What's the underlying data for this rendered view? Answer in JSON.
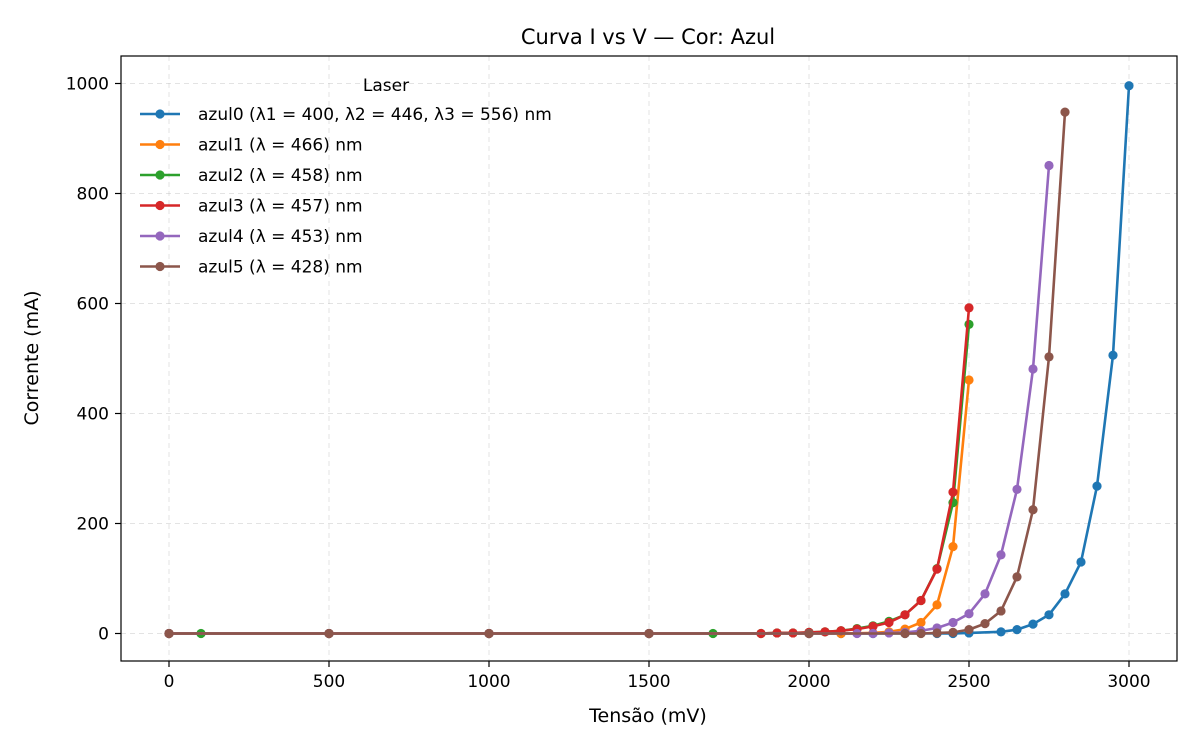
{
  "chart_data": {
    "type": "line",
    "title": "Curva I vs V — Cor: Azul",
    "xlabel": "Tensão (mV)",
    "ylabel": "Corrente (mA)",
    "xlim": [
      -150,
      3150
    ],
    "ylim": [
      -50,
      1050
    ],
    "xticks": [
      0,
      500,
      1000,
      1500,
      2000,
      2500,
      3000
    ],
    "yticks": [
      0,
      200,
      400,
      600,
      800,
      1000
    ],
    "grid": true,
    "legend": {
      "title": "Laser",
      "position": "upper-left"
    },
    "series": [
      {
        "name": "azul0 (λ1 = 400, λ2 = 446, λ3 = 556) nm",
        "color": "#1f77b4",
        "x": [
          0,
          500,
          1000,
          1500,
          2000,
          2100,
          2200,
          2300,
          2400,
          2450,
          2500,
          2600,
          2650,
          2700,
          2750,
          2800,
          2850,
          2900,
          2950,
          3000
        ],
        "y": [
          0,
          0,
          0,
          0,
          0,
          0,
          0,
          0,
          0,
          0,
          1,
          3,
          7,
          17,
          34,
          72,
          130,
          268,
          506,
          996
        ]
      },
      {
        "name": "azul1 (λ = 466) nm",
        "color": "#ff7f0e",
        "x": [
          0,
          500,
          1000,
          1500,
          2000,
          2100,
          2200,
          2250,
          2300,
          2350,
          2400,
          2450,
          2500
        ],
        "y": [
          0,
          0,
          0,
          0,
          0,
          0,
          1,
          3,
          8,
          20,
          52,
          158,
          461
        ]
      },
      {
        "name": "azul2 (λ = 458) nm",
        "color": "#2ca02c",
        "x": [
          0,
          100,
          500,
          1000,
          1500,
          1700,
          1850,
          1900,
          1950,
          2000,
          2050,
          2100,
          2150,
          2200,
          2250,
          2300,
          2350,
          2400,
          2450,
          2500
        ],
        "y": [
          0,
          0,
          0,
          0,
          0,
          0,
          0,
          1,
          1,
          2,
          3,
          5,
          9,
          14,
          22,
          34,
          60,
          118,
          238,
          562
        ]
      },
      {
        "name": "azul3 (λ = 457) nm",
        "color": "#d62728",
        "x": [
          0,
          500,
          1000,
          1500,
          1850,
          1900,
          1950,
          2000,
          2050,
          2100,
          2150,
          2200,
          2250,
          2300,
          2350,
          2400,
          2450,
          2500
        ],
        "y": [
          0,
          0,
          0,
          0,
          0,
          1,
          1,
          2,
          3,
          5,
          8,
          13,
          20,
          34,
          60,
          117,
          257,
          592
        ]
      },
      {
        "name": "azul4 (λ = 453) nm",
        "color": "#9467bd",
        "x": [
          0,
          500,
          1000,
          1500,
          2000,
          2150,
          2200,
          2250,
          2300,
          2350,
          2400,
          2450,
          2500,
          2550,
          2600,
          2650,
          2700,
          2750
        ],
        "y": [
          0,
          0,
          0,
          0,
          0,
          0,
          0,
          1,
          2,
          5,
          10,
          20,
          36,
          72,
          143,
          262,
          481,
          851
        ]
      },
      {
        "name": "azul5 (λ = 428) nm",
        "color": "#8c564b",
        "x": [
          0,
          500,
          1000,
          1500,
          2000,
          2300,
          2350,
          2400,
          2450,
          2500,
          2550,
          2600,
          2650,
          2700,
          2750,
          2800
        ],
        "y": [
          0,
          0,
          0,
          0,
          0,
          0,
          0,
          1,
          2,
          7,
          18,
          41,
          103,
          225,
          503,
          948
        ]
      }
    ]
  }
}
